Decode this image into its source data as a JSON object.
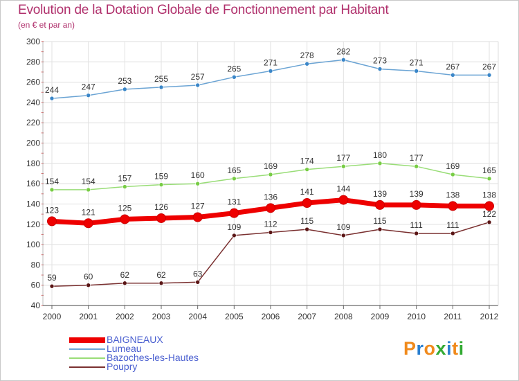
{
  "header": {
    "title": "Evolution de la Dotation Globale de Fonctionnement par Habitant",
    "subtitle": "(en € et par an)"
  },
  "chart_data": {
    "type": "line",
    "title": "Evolution de la Dotation Globale de Fonctionnement par Habitant",
    "subtitle": "(en € et par an)",
    "xlabel": "",
    "ylabel": "",
    "x": [
      "2000",
      "2001",
      "2002",
      "2003",
      "2004",
      "2005",
      "2006",
      "2007",
      "2008",
      "2009",
      "2010",
      "2011",
      "2012"
    ],
    "yticks": [
      40,
      60,
      80,
      100,
      120,
      140,
      160,
      180,
      200,
      220,
      240,
      260,
      280,
      300
    ],
    "ylim": [
      40,
      300
    ],
    "grid": "horizontal",
    "legend_position": "bottom-left",
    "series": [
      {
        "name": "Lumeau",
        "color": "#6ba4d4",
        "marker": "#3a86c8",
        "values": [
          244,
          247,
          253,
          255,
          257,
          265,
          271,
          278,
          282,
          273,
          271,
          267,
          267
        ]
      },
      {
        "name": "Bazoches-les-Hautes",
        "color": "#99dd77",
        "marker": "#77cc44",
        "values": [
          154,
          154,
          157,
          159,
          160,
          165,
          169,
          174,
          177,
          180,
          177,
          169,
          165
        ]
      },
      {
        "name": "BAIGNEAUX",
        "color": "#ee0000",
        "marker": "#ee0000",
        "values": [
          123,
          121,
          125,
          126,
          127,
          131,
          136,
          141,
          144,
          139,
          139,
          138,
          138
        ]
      },
      {
        "name": "Poupry",
        "color": "#7a3030",
        "marker": "#5a1515",
        "values": [
          59,
          60,
          62,
          62,
          63,
          109,
          112,
          115,
          109,
          115,
          111,
          111,
          122
        ]
      }
    ]
  },
  "legend": [
    {
      "name": "BAIGNEAUX",
      "color": "#ee0000"
    },
    {
      "name": "Lumeau",
      "color": "#6ba4d4"
    },
    {
      "name": "Bazoches-les-Hautes",
      "color": "#99dd77"
    },
    {
      "name": "Poupry",
      "color": "#7a3030"
    }
  ],
  "logo": {
    "text": "Proxiti",
    "colors": [
      "#f08a1c",
      "#2a7fd0",
      "#f08a1c",
      "#33aa33",
      "#2a7fd0",
      "#f08a1c",
      "#33aa33"
    ]
  }
}
